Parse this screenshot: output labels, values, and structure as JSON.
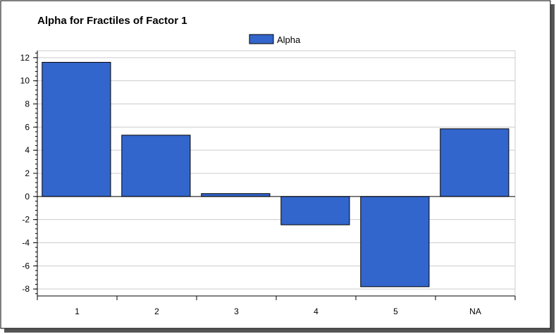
{
  "chart_data": {
    "type": "bar",
    "title": "Alpha for Fractiles of Factor 1",
    "xlabel": "",
    "ylabel": "",
    "categories": [
      "1",
      "2",
      "3",
      "4",
      "5",
      "NA"
    ],
    "series": [
      {
        "name": "Alpha",
        "values": [
          11.6,
          5.3,
          0.25,
          -2.45,
          -7.8,
          5.85
        ],
        "color": "#3366cc"
      }
    ],
    "ylim": [
      -8.6,
      12.6
    ],
    "yticks": [
      -8,
      -6,
      -4,
      -2,
      0,
      2,
      4,
      6,
      8,
      10,
      12
    ],
    "grid": true,
    "legend": "top-center"
  }
}
